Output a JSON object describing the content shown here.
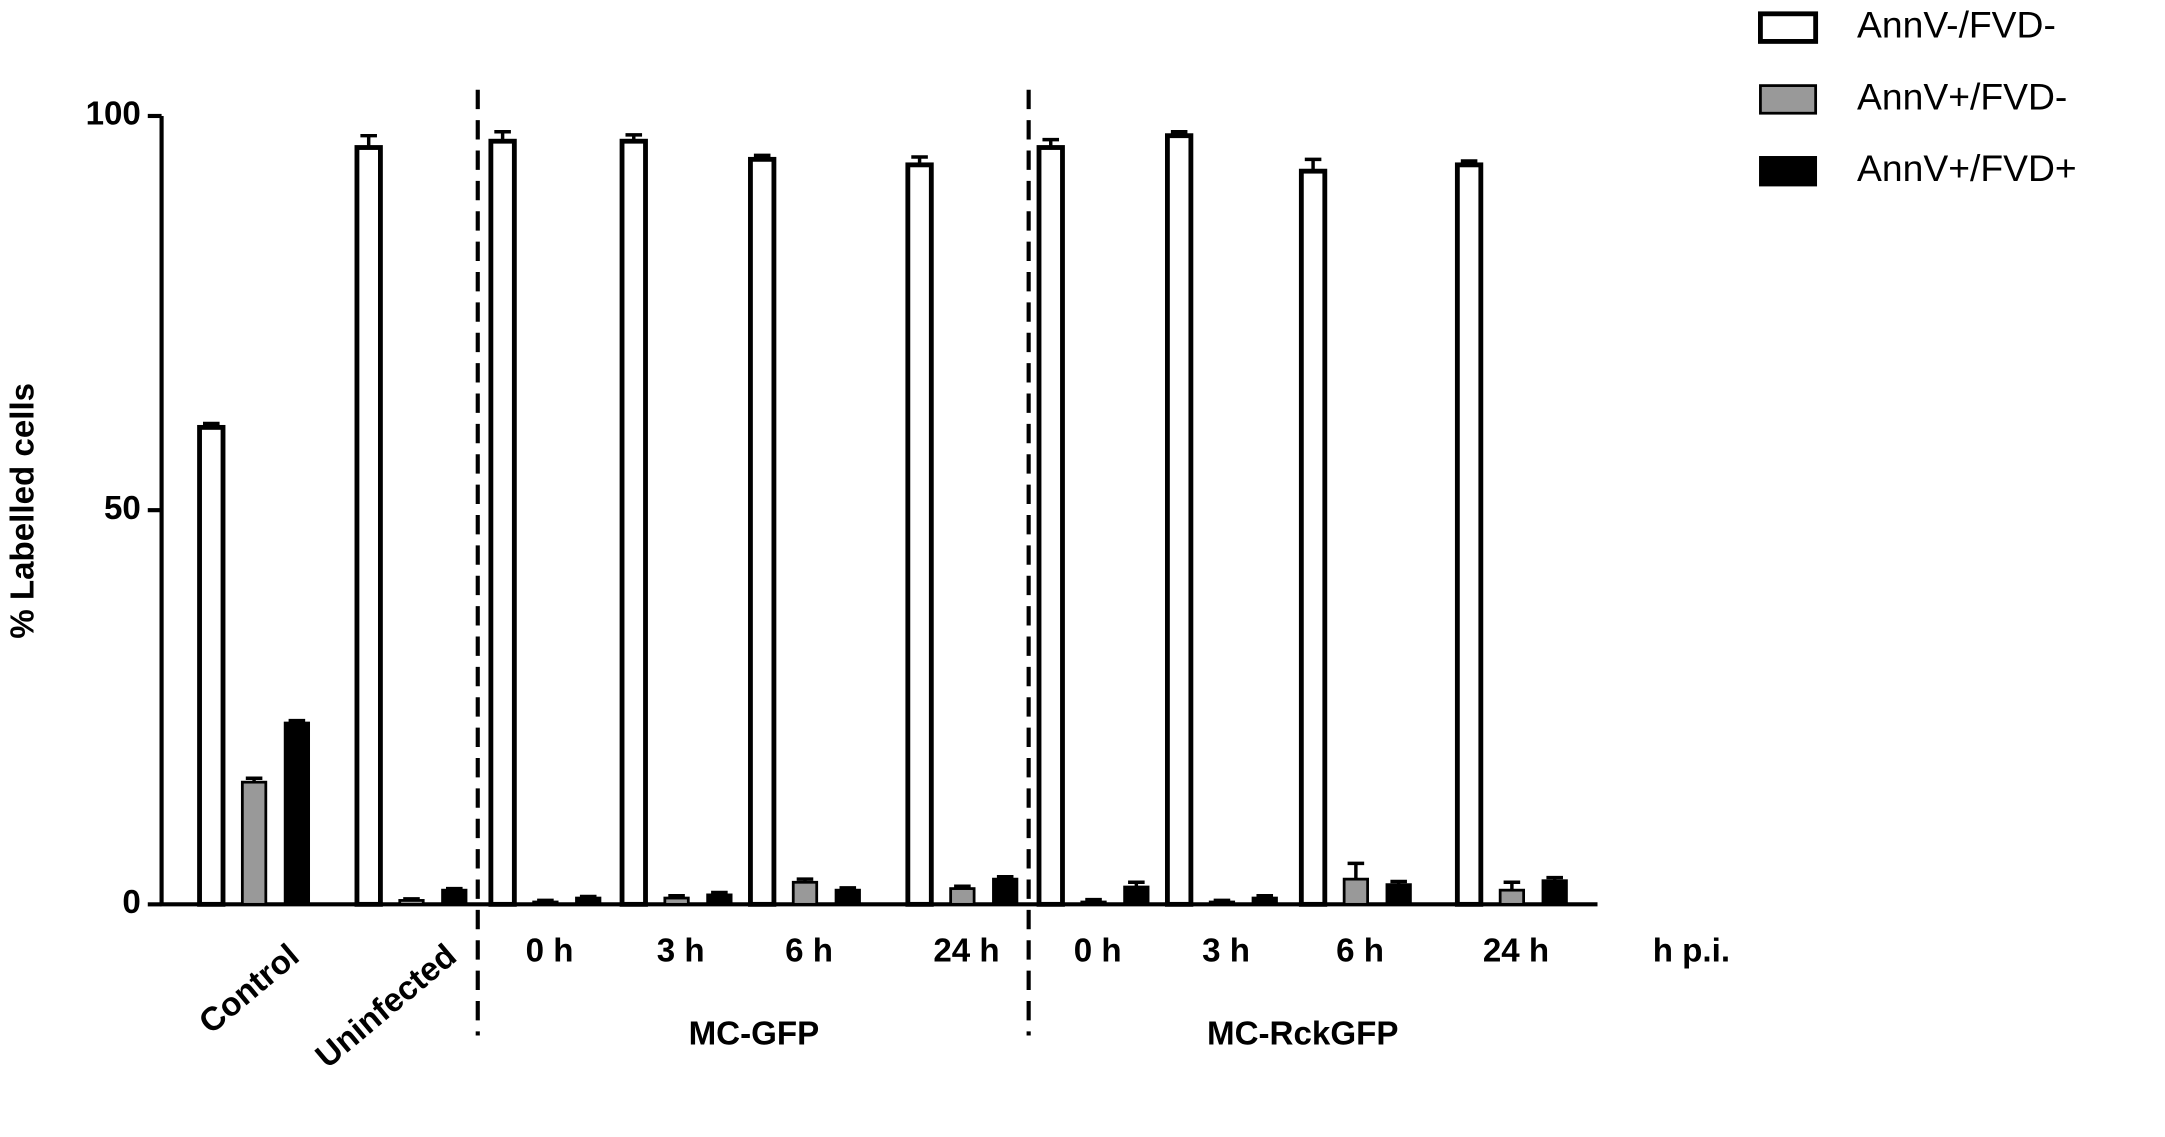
{
  "chart_data": {
    "type": "bar",
    "ylabel": "% Labelled cells",
    "categories": [
      "Control",
      "Uninfected",
      "0 h",
      "3 h",
      "6 h",
      "24 h",
      "0 h",
      "3 h",
      "6 h",
      "24 h"
    ],
    "groups": [
      "MC-GFP",
      "MC-RckGFP"
    ],
    "x_unit_label": "h p.i.",
    "series": [
      {
        "name": "AnnV-/FVD-",
        "color": "#ffffff",
        "values": [
          60.5,
          96,
          96.8,
          96.8,
          94.5,
          93.8,
          96,
          97.5,
          93,
          93.8
        ],
        "errors": [
          0.5,
          1.5,
          1.2,
          0.8,
          0.5,
          1,
          1,
          0.5,
          1.5,
          0.5
        ]
      },
      {
        "name": "AnnV+/FVD-",
        "color": "#999999",
        "values": [
          15.5,
          0.5,
          0.3,
          0.8,
          2.8,
          2,
          0.3,
          0.3,
          3.2,
          1.8
        ],
        "errors": [
          0.5,
          0.2,
          0.2,
          0.3,
          0.4,
          0.3,
          0.3,
          0.2,
          2,
          1
        ]
      },
      {
        "name": "AnnV+/FVD+",
        "color": "#000000",
        "values": [
          23,
          1.8,
          0.8,
          1.2,
          1.8,
          3.2,
          2.2,
          0.8,
          2.5,
          3
        ],
        "errors": [
          0.3,
          0.2,
          0.2,
          0.3,
          0.3,
          0.3,
          0.6,
          0.3,
          0.4,
          0.4
        ]
      }
    ],
    "ylim": [
      0,
      100
    ],
    "yticks": [
      0,
      50,
      100
    ],
    "grid": false,
    "legend": "upper right"
  }
}
